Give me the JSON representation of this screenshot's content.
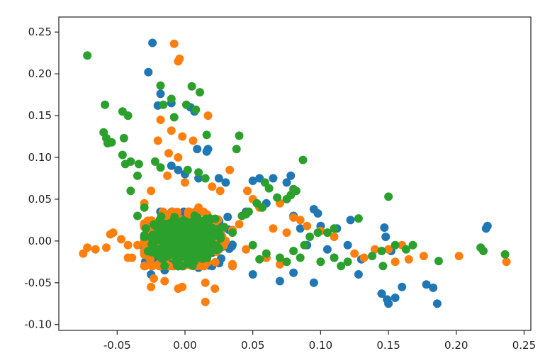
{
  "chart_data": {
    "type": "scatter",
    "title": "",
    "xlabel": "",
    "ylabel": "",
    "xlim": [
      -0.093,
      0.255
    ],
    "ylim": [
      -0.107,
      0.268
    ],
    "grid": false,
    "legend": "none",
    "x_ticks": [
      {
        "value": -0.05,
        "label": "-0.05"
      },
      {
        "value": 0.0,
        "label": "0.00"
      },
      {
        "value": 0.05,
        "label": "0.05"
      },
      {
        "value": 0.1,
        "label": "0.10"
      },
      {
        "value": 0.15,
        "label": "0.15"
      },
      {
        "value": 0.2,
        "label": "0.20"
      },
      {
        "value": 0.25,
        "label": "0.25"
      }
    ],
    "y_ticks": [
      {
        "value": -0.1,
        "label": "-0.10"
      },
      {
        "value": -0.05,
        "label": "-0.05"
      },
      {
        "value": 0.0,
        "label": "0.00"
      },
      {
        "value": 0.05,
        "label": "0.05"
      },
      {
        "value": 0.1,
        "label": "0.10"
      },
      {
        "value": 0.15,
        "label": "0.15"
      },
      {
        "value": 0.2,
        "label": "0.20"
      },
      {
        "value": 0.25,
        "label": "0.25"
      }
    ],
    "series": [
      {
        "color": "#1f77b4",
        "points": [
          [
            -0.024,
            0.237
          ],
          [
            -0.027,
            0.202
          ],
          [
            -0.018,
            0.176
          ],
          [
            -0.02,
            0.162
          ],
          [
            -0.01,
            0.165
          ],
          [
            0.004,
            0.16
          ],
          [
            0.007,
            0.155
          ],
          [
            0.017,
            0.11
          ],
          [
            0.009,
            0.11
          ],
          [
            0.016,
            0.107
          ],
          [
            -0.01,
            0.09
          ],
          [
            -0.005,
            0.085
          ],
          [
            0.0,
            0.08
          ],
          [
            0.01,
            0.075
          ],
          [
            0.025,
            0.075
          ],
          [
            0.03,
            0.07
          ],
          [
            0.05,
            0.072
          ],
          [
            0.055,
            0.075
          ],
          [
            0.065,
            0.075
          ],
          [
            0.075,
            0.07
          ],
          [
            0.078,
            0.078
          ],
          [
            0.095,
            0.038
          ],
          [
            0.098,
            0.033
          ],
          [
            0.1,
            0.018
          ],
          [
            0.112,
            0.015
          ],
          [
            0.122,
            0.025
          ],
          [
            0.12,
            -0.005
          ],
          [
            0.128,
            -0.04
          ],
          [
            0.13,
            -0.022
          ],
          [
            0.147,
            0.016
          ],
          [
            0.148,
            0.005
          ],
          [
            0.152,
            -0.012
          ],
          [
            0.145,
            -0.063
          ],
          [
            0.149,
            -0.07
          ],
          [
            0.15,
            -0.075
          ],
          [
            0.155,
            -0.068
          ],
          [
            0.16,
            -0.055
          ],
          [
            0.178,
            -0.052
          ],
          [
            0.183,
            -0.056
          ],
          [
            0.186,
            -0.075
          ],
          [
            0.223,
            0.018
          ],
          [
            0.222,
            0.015
          ],
          [
            0.095,
            -0.05
          ],
          [
            0.07,
            -0.048
          ],
          [
            0.08,
            -0.038
          ],
          [
            0.05,
            -0.04
          ],
          [
            0.06,
            -0.02
          ],
          [
            0.035,
            -0.03
          ],
          [
            -0.015,
            -0.035
          ],
          [
            -0.005,
            -0.03
          ],
          [
            -0.025,
            -0.04
          ],
          [
            0.01,
            -0.032
          ],
          [
            0.02,
            -0.03
          ],
          [
            0.045,
            0.035
          ],
          [
            0.06,
            0.045
          ],
          [
            0.08,
            0.03
          ],
          [
            0.085,
            0.015
          ],
          [
            0.105,
            -0.01
          ],
          [
            0.11,
            -0.02
          ],
          [
            0.09,
            -0.005
          ]
        ]
      },
      {
        "color": "#ff7f0e",
        "points": [
          [
            -0.008,
            0.236
          ],
          [
            -0.004,
            0.218
          ],
          [
            -0.005,
            0.215
          ],
          [
            0.017,
            0.15
          ],
          [
            -0.018,
            0.145
          ],
          [
            -0.01,
            0.132
          ],
          [
            -0.002,
            0.125
          ],
          [
            0.006,
            0.12
          ],
          [
            -0.02,
            0.12
          ],
          [
            -0.012,
            0.105
          ],
          [
            -0.005,
            0.1
          ],
          [
            0.033,
            0.085
          ],
          [
            -0.013,
            0.078
          ],
          [
            0.0,
            0.07
          ],
          [
            0.02,
            0.065
          ],
          [
            0.026,
            0.06
          ],
          [
            0.046,
            0.06
          ],
          [
            0.05,
            0.05
          ],
          [
            0.055,
            0.04
          ],
          [
            0.07,
            0.045
          ],
          [
            0.08,
            0.028
          ],
          [
            0.085,
            0.025
          ],
          [
            0.09,
            0.018
          ],
          [
            0.075,
            0.01
          ],
          [
            0.065,
            0.015
          ],
          [
            0.1,
            0.012
          ],
          [
            0.11,
            0.005
          ],
          [
            0.125,
            -0.015
          ],
          [
            0.132,
            -0.02
          ],
          [
            0.14,
            -0.01
          ],
          [
            0.15,
            -0.01
          ],
          [
            0.155,
            -0.025
          ],
          [
            0.16,
            -0.005
          ],
          [
            0.165,
            -0.022
          ],
          [
            0.176,
            -0.018
          ],
          [
            0.202,
            -0.018
          ],
          [
            0.237,
            -0.025
          ],
          [
            -0.075,
            -0.015
          ],
          [
            -0.072,
            -0.008
          ],
          [
            -0.066,
            -0.01
          ],
          [
            -0.058,
            -0.008
          ],
          [
            -0.055,
            0.008
          ],
          [
            -0.053,
            0.01
          ],
          [
            -0.047,
            0.002
          ],
          [
            -0.042,
            -0.005
          ],
          [
            -0.039,
            -0.02
          ],
          [
            -0.042,
            -0.02
          ],
          [
            -0.035,
            -0.005
          ],
          [
            -0.025,
            -0.055
          ],
          [
            -0.023,
            -0.045
          ],
          [
            -0.015,
            -0.048
          ],
          [
            -0.005,
            -0.057
          ],
          [
            -0.002,
            -0.055
          ],
          [
            0.015,
            -0.073
          ],
          [
            0.015,
            -0.05
          ],
          [
            0.022,
            -0.057
          ],
          [
            0.03,
            0.0
          ],
          [
            0.025,
            -0.01
          ],
          [
            -0.03,
            0.045
          ],
          [
            -0.025,
            0.06
          ],
          [
            0.01,
            0.04
          ],
          [
            0.04,
            0.02
          ],
          [
            0.045,
            -0.01
          ],
          [
            0.06,
            -0.02
          ],
          [
            0.07,
            -0.028
          ]
        ]
      },
      {
        "color": "#2ca02c",
        "points": [
          [
            -0.072,
            0.222
          ],
          [
            -0.018,
            0.186
          ],
          [
            0.005,
            0.185
          ],
          [
            0.011,
            0.178
          ],
          [
            -0.01,
            0.17
          ],
          [
            -0.016,
            0.163
          ],
          [
            -0.059,
            0.163
          ],
          [
            -0.046,
            0.155
          ],
          [
            -0.042,
            0.15
          ],
          [
            0.001,
            0.163
          ],
          [
            0.008,
            0.157
          ],
          [
            -0.008,
            0.148
          ],
          [
            -0.06,
            0.13
          ],
          [
            -0.058,
            0.123
          ],
          [
            -0.057,
            0.117
          ],
          [
            -0.054,
            0.118
          ],
          [
            -0.045,
            0.123
          ],
          [
            -0.046,
            0.103
          ],
          [
            -0.04,
            0.095
          ],
          [
            -0.034,
            0.092
          ],
          [
            -0.044,
            0.092
          ],
          [
            -0.035,
            0.078
          ],
          [
            0.016,
            0.127
          ],
          [
            0.04,
            0.126
          ],
          [
            0.038,
            0.11
          ],
          [
            0.087,
            0.097
          ],
          [
            0.002,
            0.085
          ],
          [
            0.01,
            0.082
          ],
          [
            0.015,
            0.075
          ],
          [
            -0.022,
            0.095
          ],
          [
            -0.018,
            0.088
          ],
          [
            0.059,
            0.07
          ],
          [
            0.062,
            0.063
          ],
          [
            0.08,
            0.062
          ],
          [
            0.082,
            0.06
          ],
          [
            0.078,
            0.055
          ],
          [
            0.075,
            0.05
          ],
          [
            0.068,
            0.052
          ],
          [
            0.053,
            0.045
          ],
          [
            0.057,
            0.04
          ],
          [
            0.047,
            0.035
          ],
          [
            0.045,
            0.032
          ],
          [
            0.042,
            0.03
          ],
          [
            0.15,
            0.053
          ],
          [
            0.128,
            0.027
          ],
          [
            0.11,
            0.015
          ],
          [
            0.105,
            0.01
          ],
          [
            0.098,
            0.01
          ],
          [
            0.092,
            0.005
          ],
          [
            0.088,
            -0.005
          ],
          [
            0.08,
            -0.012
          ],
          [
            0.085,
            -0.02
          ],
          [
            0.1,
            -0.025
          ],
          [
            0.11,
            -0.02
          ],
          [
            0.115,
            -0.03
          ],
          [
            0.12,
            -0.025
          ],
          [
            0.138,
            -0.018
          ],
          [
            0.145,
            -0.012
          ],
          [
            0.146,
            -0.03
          ],
          [
            0.155,
            -0.005
          ],
          [
            0.163,
            -0.01
          ],
          [
            0.168,
            -0.005
          ],
          [
            0.187,
            -0.024
          ],
          [
            0.218,
            -0.008
          ],
          [
            0.22,
            -0.012
          ],
          [
            0.236,
            -0.016
          ],
          [
            -0.04,
            0.06
          ],
          [
            -0.035,
            0.03
          ],
          [
            -0.03,
            0.04
          ],
          [
            0.035,
            0.01
          ],
          [
            0.05,
            -0.005
          ],
          [
            0.06,
            -0.015
          ],
          [
            0.07,
            -0.02
          ],
          [
            0.075,
            -0.025
          ],
          [
            0.055,
            -0.022
          ]
        ]
      }
    ],
    "clusters": [
      {
        "color": "#1f77b4",
        "cx": 0.0,
        "cy": 0.0,
        "sx": 0.028,
        "sy": 0.03,
        "n": 260
      },
      {
        "color": "#ff7f0e",
        "cx": -0.002,
        "cy": 0.0,
        "sx": 0.03,
        "sy": 0.03,
        "n": 280
      },
      {
        "color": "#2ca02c",
        "cx": 0.0,
        "cy": 0.002,
        "sx": 0.02,
        "sy": 0.022,
        "n": 520
      }
    ]
  }
}
